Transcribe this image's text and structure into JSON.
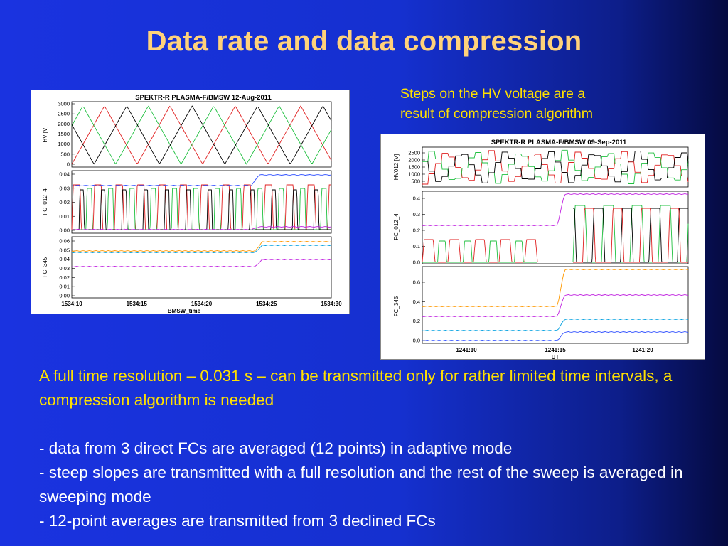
{
  "title": "Data rate and data compression",
  "caption": {
    "line1": "Steps on the HV voltage are a",
    "line2": "result of compression algorithm"
  },
  "plot1": {
    "title": "SPEKTR-R  PLASMA-F/BMSW  12-Aug-2011",
    "panel_labels": [
      "HV [V]",
      "FC_012_4",
      "FC_345"
    ],
    "hv_ticks": [
      "3000",
      "2500",
      "2000",
      "1500",
      "1000",
      "500",
      "0"
    ],
    "fc012_ticks": [
      "0.04",
      "0.03",
      "0.02",
      "0.01",
      "0.00"
    ],
    "fc345_ticks": [
      "0.06",
      "0.05",
      "0.04",
      "0.03",
      "0.02",
      "0.01",
      "0.00"
    ],
    "x_ticks": [
      "1534:10",
      "1534:15",
      "1534:20",
      "1534:25",
      "1534:30"
    ],
    "x_label": "BMSW_time"
  },
  "plot2": {
    "title": "SPEKTR-R  PLASMA-F/BMSW  09-Sep-2011",
    "panel_labels": [
      "HV012 [V]",
      "FC_012_4",
      "FC_345"
    ],
    "hv_ticks": [
      "2500",
      "2000",
      "1500",
      "1000",
      "500"
    ],
    "fc012_ticks": [
      "0.4",
      "0.3",
      "0.2",
      "0.1",
      "0.0"
    ],
    "fc345_ticks": [
      "0.6",
      "0.4",
      "0.2",
      "0.0"
    ],
    "x_ticks": [
      "1241:10",
      "1241:15",
      "1241:20"
    ],
    "x_label": "UT"
  },
  "body": {
    "para1": "A full time resolution – 0.031 s – can be transmitted only for rather limited time intervals, a compression algorithm is needed",
    "bullet1": "- data from 3 direct FCs are averaged (12 points)  in adaptive mode",
    "bullet2": "- steep slopes are transmitted with a full resolution and the rest of the sweep is averaged in sweeping mode",
    "bullet3": "- 12-point averages are transmitted from 3 declined FCs"
  },
  "colors": {
    "title": "#ffd27a",
    "highlight_text": "#ffe000",
    "body_text": "#ffffff",
    "series_red": "#e02020",
    "series_green": "#20c040",
    "series_black": "#000000",
    "series_blue": "#3050ff",
    "series_magenta": "#c020e0",
    "series_orange": "#ff9900",
    "series_cyan": "#00a0e0"
  }
}
